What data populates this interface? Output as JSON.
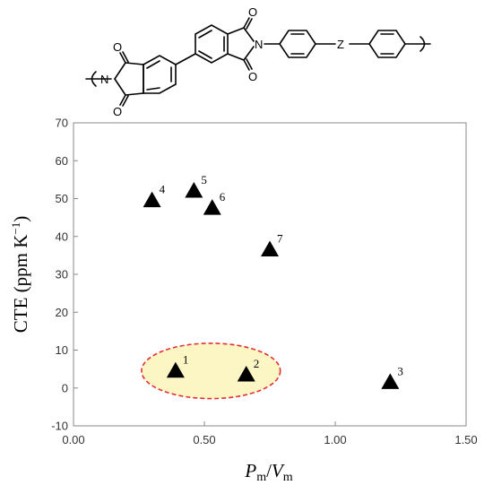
{
  "structure": {
    "atoms": {
      "n1": "N",
      "n2": "N",
      "o1": "O",
      "o2": "O",
      "o3": "O",
      "o4": "O",
      "z": "Z"
    },
    "name": "polyimide-repeat-unit"
  },
  "chart_data": {
    "type": "scatter",
    "xlabel_main": "P",
    "xlabel_sub1": "m",
    "xlabel_sep": "/",
    "xlabel_main2": "V",
    "xlabel_sub2": "m",
    "ylabel": "CTE (ppm K",
    "ylabel_sup": "−1",
    "ylabel_close": ")",
    "xlim": [
      0,
      1.5
    ],
    "ylim": [
      -10,
      70
    ],
    "x_ticks": [
      0.0,
      0.5,
      1.0,
      1.5
    ],
    "x_tick_labels": [
      "0.00",
      "0.50",
      "1.00",
      "1.50"
    ],
    "y_ticks": [
      -10,
      0,
      10,
      20,
      30,
      40,
      50,
      60,
      70
    ],
    "y_tick_labels": [
      "-10",
      "0",
      "10",
      "20",
      "30",
      "40",
      "50",
      "60",
      "70"
    ],
    "grid": false,
    "marker": "triangle",
    "marker_color": "#000000",
    "points": [
      {
        "label": "1",
        "x": 0.39,
        "y": 4.5
      },
      {
        "label": "2",
        "x": 0.66,
        "y": 3.5
      },
      {
        "label": "3",
        "x": 1.21,
        "y": 1.5
      },
      {
        "label": "4",
        "x": 0.3,
        "y": 49.5
      },
      {
        "label": "5",
        "x": 0.46,
        "y": 52.0
      },
      {
        "label": "6",
        "x": 0.53,
        "y": 47.5
      },
      {
        "label": "7",
        "x": 0.75,
        "y": 36.5
      }
    ],
    "highlight": {
      "center_x": 0.525,
      "center_y": 4.5,
      "radius_x": 0.265,
      "radius_y": 7.3,
      "fill": "#fbf6c4",
      "stroke": "#e03030"
    }
  }
}
